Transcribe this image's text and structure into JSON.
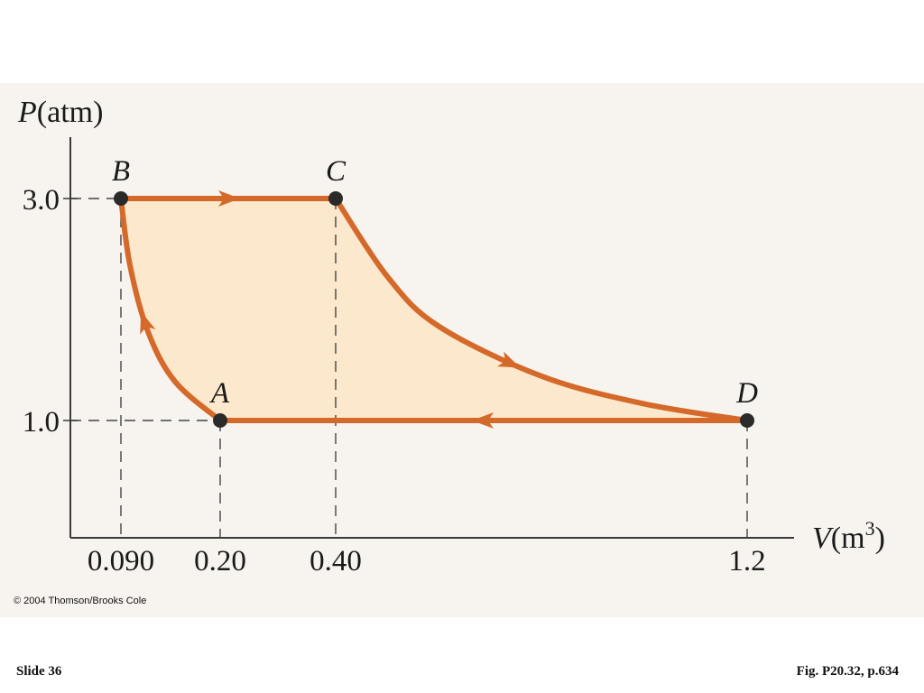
{
  "chart_data": {
    "type": "line",
    "title": "",
    "xlabel": "V(m3)",
    "ylabel": "P(atm)",
    "x_ticks": [
      "0.090",
      "0.20",
      "0.40",
      "1.2"
    ],
    "y_ticks": [
      "1.0",
      "3.0"
    ],
    "points": [
      {
        "name": "A",
        "x": 0.2,
        "y": 1.0
      },
      {
        "name": "B",
        "x": 0.09,
        "y": 3.0
      },
      {
        "name": "C",
        "x": 0.4,
        "y": 3.0
      },
      {
        "name": "D",
        "x": 1.2,
        "y": 1.0
      }
    ],
    "cycle": [
      "A",
      "B",
      "C",
      "D",
      "A"
    ],
    "series": [
      {
        "from": "A",
        "to": "B",
        "shape": "curve",
        "x": [
          0.2,
          0.15,
          0.12,
          0.1,
          0.09
        ],
        "y": [
          1.0,
          1.35,
          1.8,
          2.4,
          3.0
        ]
      },
      {
        "from": "B",
        "to": "C",
        "shape": "straight",
        "x": [
          0.09,
          0.4
        ],
        "y": [
          3.0,
          3.0
        ]
      },
      {
        "from": "C",
        "to": "D",
        "shape": "curve",
        "x": [
          0.4,
          0.5,
          0.6,
          0.8,
          1.0,
          1.2
        ],
        "y": [
          3.0,
          2.3,
          1.85,
          1.4,
          1.15,
          1.0
        ]
      },
      {
        "from": "D",
        "to": "A",
        "shape": "straight",
        "x": [
          1.2,
          0.2
        ],
        "y": [
          1.0,
          1.0
        ]
      }
    ],
    "enclosed_area_shaded": true,
    "colors": {
      "path": "#d4692a",
      "fill": "#fce8cc",
      "point": "#2a2a2a",
      "axis": "#3a3a3a",
      "panel": "#f7f4ef"
    }
  },
  "copyright": "© 2004 Thomson/Brooks Cole",
  "footer": {
    "slide": "Slide 36",
    "figure_ref": "Fig. P20.32, p.634"
  }
}
